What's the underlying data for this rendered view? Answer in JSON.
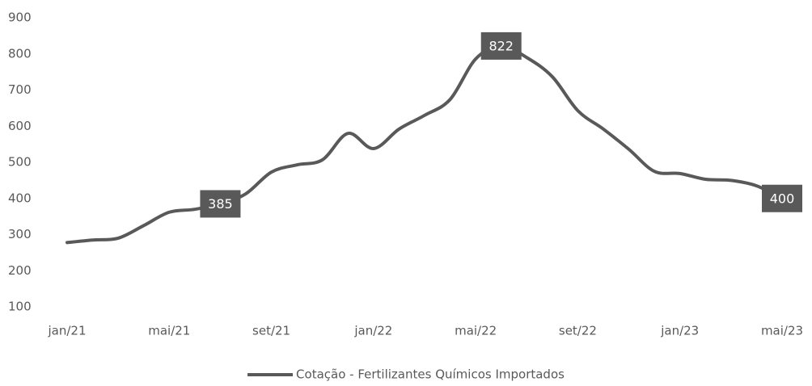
{
  "chart_data": {
    "type": "line",
    "categories": [
      "jan/21",
      null,
      null,
      null,
      "mai/21",
      null,
      null,
      null,
      "set/21",
      null,
      null,
      null,
      "jan/22",
      null,
      null,
      null,
      "mai/22",
      null,
      null,
      null,
      "set/22",
      null,
      null,
      null,
      "jan/23",
      null,
      null,
      null,
      "mai/23"
    ],
    "series": [
      {
        "name": "Cotação - Fertilizantes Químicos Importados",
        "color": "#595959",
        "values": [
          278,
          285,
          290,
          325,
          362,
          370,
          385,
          413,
          473,
          493,
          507,
          580,
          538,
          592,
          630,
          674,
          786,
          822,
          790,
          737,
          643,
          592,
          536,
          475,
          469,
          453,
          450,
          435,
          400
        ],
        "value_labels": [
          null,
          null,
          null,
          null,
          null,
          null,
          "385",
          null,
          null,
          null,
          null,
          null,
          null,
          null,
          null,
          null,
          null,
          "822",
          null,
          null,
          null,
          null,
          null,
          null,
          null,
          null,
          null,
          null,
          "400"
        ]
      }
    ],
    "ylim": [
      100,
      900
    ],
    "yticks": [
      100,
      200,
      300,
      400,
      500,
      600,
      700,
      800,
      900
    ],
    "legend": "bottom"
  }
}
